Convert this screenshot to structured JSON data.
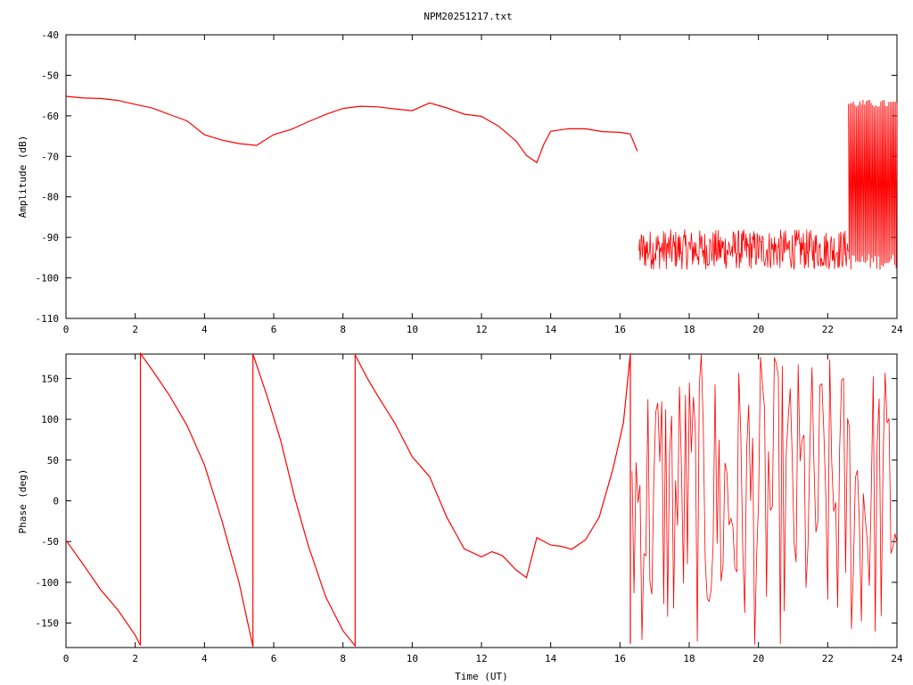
{
  "chart_data": [
    {
      "type": "line",
      "title": "NPM20251217.txt",
      "xlabel": "",
      "ylabel": "Amplitude (dB)",
      "xlim": [
        0,
        24
      ],
      "ylim": [
        -110,
        -40
      ],
      "xticks": [
        0,
        2,
        4,
        6,
        8,
        10,
        12,
        14,
        16,
        18,
        20,
        22,
        24
      ],
      "yticks": [
        -40,
        -50,
        -60,
        -70,
        -80,
        -90,
        -100,
        -110
      ],
      "grid": false,
      "color": "#ff0000",
      "series": [
        {
          "x": [
            0,
            0.5,
            1,
            1.5,
            2,
            2.5,
            3,
            3.5,
            4,
            4.5,
            5,
            5.5,
            6,
            6.5,
            7,
            7.5,
            8,
            8.5,
            9,
            9.5,
            10,
            10.5,
            11,
            11.5,
            12,
            12.5,
            13,
            13.3,
            13.6,
            13.8,
            14,
            14.5,
            15,
            15.5,
            16,
            16.3,
            16.5
          ],
          "values": [
            -55.5,
            -55.5,
            -55.8,
            -56.5,
            -57.3,
            -58.2,
            -59.5,
            -61.5,
            -64.8,
            -66.2,
            -67.0,
            -67.2,
            -64.8,
            -63.2,
            -61.5,
            -59.5,
            -58.0,
            -57.8,
            -58.0,
            -58.5,
            -58.5,
            -56.8,
            -58.2,
            -59.5,
            -60.0,
            -62.5,
            -66.5,
            -70.0,
            -71.5,
            -67.0,
            -64.0,
            -63.0,
            -63.0,
            -63.8,
            -64.0,
            -64.5,
            -69.0
          ]
        }
      ],
      "noise": {
        "x_start": 16.55,
        "x_end": 22.6,
        "low": -98,
        "high": -88
      },
      "recovery": {
        "x_start": 22.6,
        "x_end": 24,
        "high": -58,
        "low": -98
      }
    },
    {
      "type": "line",
      "title": "",
      "xlabel": "Time (UT)",
      "ylabel": "Phase (deg)",
      "xlim": [
        0,
        24
      ],
      "ylim": [
        -180,
        180
      ],
      "xticks": [
        0,
        2,
        4,
        6,
        8,
        10,
        12,
        14,
        16,
        18,
        20,
        22,
        24
      ],
      "yticks": [
        150,
        100,
        50,
        0,
        -50,
        -100,
        -150
      ],
      "grid": false,
      "color": "#ff0000",
      "series": [
        {
          "x": [
            0,
            0.5,
            1.0,
            1.5,
            2.0,
            2.15,
            2.15,
            2.5,
            3.0,
            3.5,
            4.0,
            4.5,
            5.0,
            5.4,
            5.4,
            5.8,
            6.2,
            6.6,
            7.0,
            7.5,
            8.0,
            8.35,
            8.35,
            8.7,
            9.0,
            9.5,
            10.0,
            10.5,
            11.0,
            11.5,
            12.0,
            12.3,
            12.6,
            13.0,
            13.3,
            13.6,
            14.0,
            14.3,
            14.6,
            15.0,
            15.4,
            15.8,
            16.1,
            16.3,
            16.3
          ],
          "values": [
            -48,
            -78,
            -108,
            -135,
            -165,
            -178,
            180,
            160,
            128,
            92,
            45,
            -25,
            -100,
            -178,
            180,
            130,
            75,
            5,
            -55,
            -118,
            -160,
            -178,
            180,
            150,
            130,
            95,
            55,
            30,
            -20,
            -58,
            -68,
            -62,
            -68,
            -85,
            -95,
            -45,
            -55,
            -55,
            -60,
            -48,
            -20,
            40,
            95,
            180,
            -175
          ]
        }
      ],
      "noise": {
        "x_start": 16.35,
        "x_end": 24,
        "low": -180,
        "high": 180
      }
    }
  ]
}
